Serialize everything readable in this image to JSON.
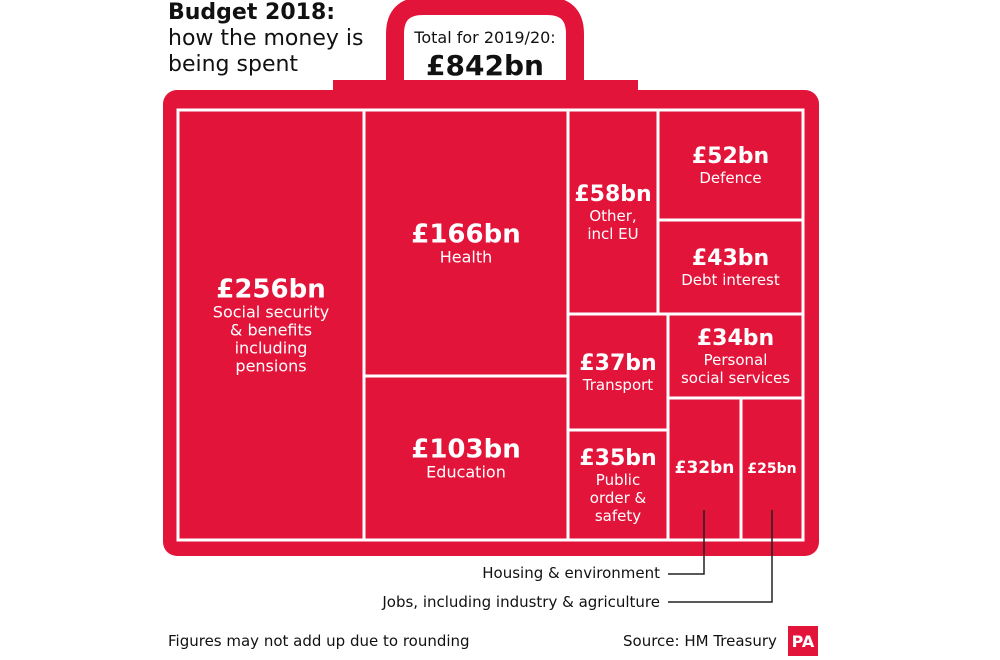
{
  "header": {
    "title_line1": "Budget 2018:",
    "title_line2": "how the money is",
    "title_line3": "being spent",
    "total_label": "Total for 2019/20:",
    "total_value": "£842bn"
  },
  "footer": {
    "note": "Figures may not add up due to rounding",
    "source": "Source: HM Treasury",
    "logo_text": "PA"
  },
  "colors": {
    "case": "#e3143a",
    "divider": "#ffffff",
    "text_on_case": "#ffffff"
  },
  "chart_data": {
    "type": "treemap",
    "unit": "£bn",
    "total": 842,
    "items": [
      {
        "value_label": "£256bn",
        "value": 256,
        "label": [
          "Social security",
          "& benefits",
          "including",
          "pensions"
        ]
      },
      {
        "value_label": "£166bn",
        "value": 166,
        "label": [
          "Health"
        ]
      },
      {
        "value_label": "£103bn",
        "value": 103,
        "label": [
          "Education"
        ]
      },
      {
        "value_label": "£58bn",
        "value": 58,
        "label": [
          "Other,",
          "incl EU"
        ]
      },
      {
        "value_label": "£52bn",
        "value": 52,
        "label": [
          "Defence"
        ]
      },
      {
        "value_label": "£43bn",
        "value": 43,
        "label": [
          "Debt interest"
        ]
      },
      {
        "value_label": "£37bn",
        "value": 37,
        "label": [
          "Transport"
        ]
      },
      {
        "value_label": "£34bn",
        "value": 34,
        "label": [
          "Personal",
          "social services"
        ]
      },
      {
        "value_label": "£35bn",
        "value": 35,
        "label": [
          "Public",
          "order &",
          "safety"
        ]
      },
      {
        "value_label": "£32bn",
        "value": 32,
        "label": []
      },
      {
        "value_label": "£25bn",
        "value": 25,
        "label": []
      }
    ],
    "callouts": [
      {
        "text": "Housing & environment",
        "for": "£32bn"
      },
      {
        "text": "Jobs, including industry & agriculture",
        "for": "£25bn"
      }
    ]
  }
}
